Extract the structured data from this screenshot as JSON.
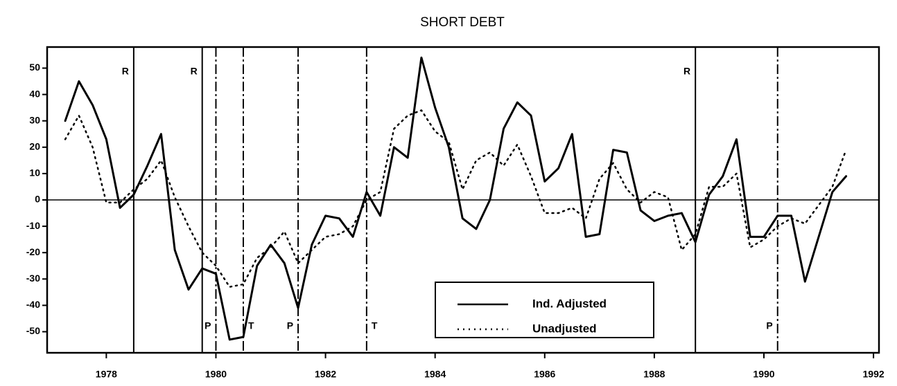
{
  "chart_data": {
    "type": "line",
    "title": "SHORT DEBT",
    "x": [
      1977.25,
      1977.5,
      1977.75,
      1978,
      1978.25,
      1978.5,
      1978.75,
      1979,
      1979.25,
      1979.5,
      1979.75,
      1980,
      1980.25,
      1980.5,
      1980.75,
      1981,
      1981.25,
      1981.5,
      1981.75,
      1982,
      1982.25,
      1982.5,
      1982.75,
      1983,
      1983.25,
      1983.5,
      1983.75,
      1984,
      1984.25,
      1984.5,
      1984.75,
      1985,
      1985.25,
      1985.5,
      1985.75,
      1986,
      1986.25,
      1986.5,
      1986.75,
      1987,
      1987.25,
      1987.5,
      1987.75,
      1988,
      1988.25,
      1988.5,
      1988.75,
      1989,
      1989.25,
      1989.5,
      1989.75,
      1990,
      1990.25,
      1990.5,
      1990.75,
      1991,
      1991.25,
      1991.5
    ],
    "series": [
      {
        "name": "Ind. Adjusted",
        "color": "#000000",
        "dash": "solid",
        "values": [
          30,
          45,
          36,
          23,
          -3,
          2,
          13,
          25,
          -19,
          -34,
          -26,
          -28,
          -53,
          -52,
          -25,
          -17,
          -24,
          -41,
          -17,
          -6,
          -7,
          -14,
          3,
          -6,
          20,
          16,
          54,
          35,
          20,
          -7,
          -11,
          0,
          27,
          37,
          32,
          7,
          12,
          25,
          -14,
          -13,
          19,
          18,
          -4,
          -8,
          -6,
          -5,
          -16,
          2,
          9,
          23,
          -14,
          -14,
          -6,
          -6,
          -31,
          -14,
          3,
          9
        ]
      },
      {
        "name": "Unadjusted",
        "color": "#000000",
        "dash": "dotted",
        "values": [
          23,
          32,
          20,
          -1,
          -1,
          4,
          8,
          15,
          1,
          -10,
          -20,
          -25,
          -33,
          -32,
          -22,
          -18,
          -12,
          -24,
          -19,
          -14,
          -13,
          -10,
          0,
          3,
          27,
          32,
          34,
          26,
          22,
          4,
          15,
          18,
          13,
          21,
          9,
          -5,
          -5,
          -3,
          -7,
          8,
          14,
          4,
          -1,
          3,
          1,
          -19,
          -13,
          5,
          5,
          10,
          -18,
          -15,
          -10,
          -7,
          -9,
          -2,
          5,
          19
        ]
      }
    ],
    "reference_lines": [
      {
        "x": 1978.5,
        "label": "R",
        "style": "solid",
        "label_side": "left",
        "label_at": "top"
      },
      {
        "x": 1979.75,
        "label": "R",
        "style": "solid",
        "label_side": "left",
        "label_at": "top"
      },
      {
        "x": 1980.0,
        "label": "P",
        "style": "dashdot",
        "label_side": "left",
        "label_at": "bottom"
      },
      {
        "x": 1980.5,
        "label": "T",
        "style": "dashdot",
        "label_side": "right",
        "label_at": "bottom"
      },
      {
        "x": 1981.5,
        "label": "P",
        "style": "dashdot",
        "label_side": "left",
        "label_at": "bottom"
      },
      {
        "x": 1982.75,
        "label": "T",
        "style": "dashdot",
        "label_side": "right",
        "label_at": "bottom"
      },
      {
        "x": 1988.75,
        "label": "R",
        "style": "solid",
        "label_side": "left",
        "label_at": "top"
      },
      {
        "x": 1990.25,
        "label": "P",
        "style": "dashdot",
        "label_side": "left",
        "label_at": "bottom"
      }
    ],
    "xlim": [
      1976.92,
      1992.1
    ],
    "xticks": [
      1978,
      1980,
      1982,
      1984,
      1986,
      1988,
      1990,
      1992
    ],
    "ylim": [
      -58,
      58
    ],
    "yticks": [
      -50,
      -40,
      -30,
      -20,
      -10,
      0,
      10,
      20,
      30,
      40,
      50
    ],
    "zero_line": true,
    "legend": "lower center"
  }
}
